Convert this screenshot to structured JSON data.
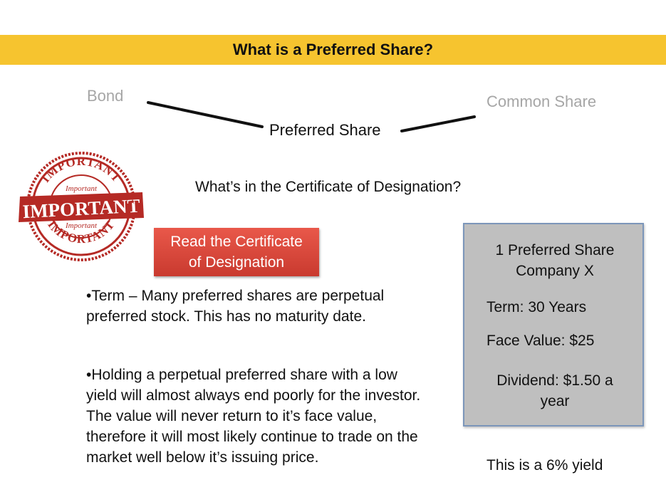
{
  "title": "What is a Preferred Share?",
  "diagram": {
    "left_label": "Bond",
    "right_label": "Common Share",
    "center_label": "Preferred Share"
  },
  "question": "What’s in the Certificate of Designation?",
  "stamp": {
    "big_text": "IMPORTANT",
    "small_text": "Important",
    "color": "#b52a25"
  },
  "read_button": {
    "line1": "Read the Certificate",
    "line2": "of Designation"
  },
  "paragraphs": [
    "•Term – Many preferred shares are perpetual preferred stock.  This has no maturity date.",
    "•Holding a perpetual preferred share with a low yield will almost always end poorly for the investor.  The value will never return to it’s face value, therefore it will most likely continue to trade on the market well below it’s issuing price."
  ],
  "info_box": {
    "heading_line1": "1 Preferred Share",
    "heading_line2": "Company X",
    "term": "Term: 30 Years",
    "face_value": "Face Value: $25",
    "dividend_line1": "Dividend: $1.50 a",
    "dividend_line2": "year"
  },
  "yield_note": "This is a 6% yield",
  "colors": {
    "title_bar": "#f6c42f",
    "button": "#d9473b",
    "box_fill": "#bfbfbf",
    "box_border": "#7c96ba",
    "gray_text": "#a6a6a6"
  }
}
